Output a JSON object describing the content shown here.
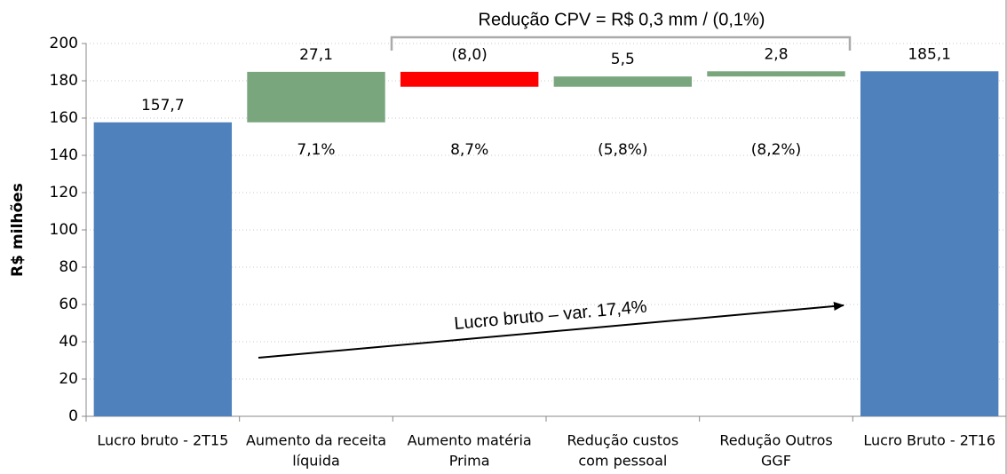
{
  "chart_data": {
    "type": "waterfall",
    "y_label": "R$ milhões",
    "categories": [
      [
        "Lucro bruto - 2T15"
      ],
      [
        "Aumento da receita",
        "líquida"
      ],
      [
        "Aumento matéria",
        "Prima"
      ],
      [
        "Redução custos",
        "com pessoal"
      ],
      [
        "Redução Outros",
        "GGF"
      ],
      [
        "Lucro Bruto - 2T16"
      ]
    ],
    "values": [
      157.7,
      27.1,
      -8.0,
      5.5,
      2.8,
      185.1
    ],
    "value_labels": [
      "157,7",
      "27,1",
      "(8,0)",
      "5,5",
      "2,8",
      "185,1"
    ],
    "sublabels": [
      null,
      "7,1%",
      "8,7%",
      "(5,8%)",
      "(8,2%)",
      null
    ],
    "colors": [
      "#4f81bd",
      "#7aa67d",
      "#ff0000",
      "#7aa67d",
      "#7aa67d",
      "#4f81bd"
    ],
    "ylim": [
      0,
      200
    ],
    "yticks": [
      0,
      20,
      40,
      60,
      80,
      100,
      120,
      140,
      160,
      180,
      200
    ],
    "grid": true,
    "annotations": [
      "Redução CPV = R$ 0,3 mm / (0,1%)",
      "Lucro bruto – var. 17,4%"
    ]
  }
}
